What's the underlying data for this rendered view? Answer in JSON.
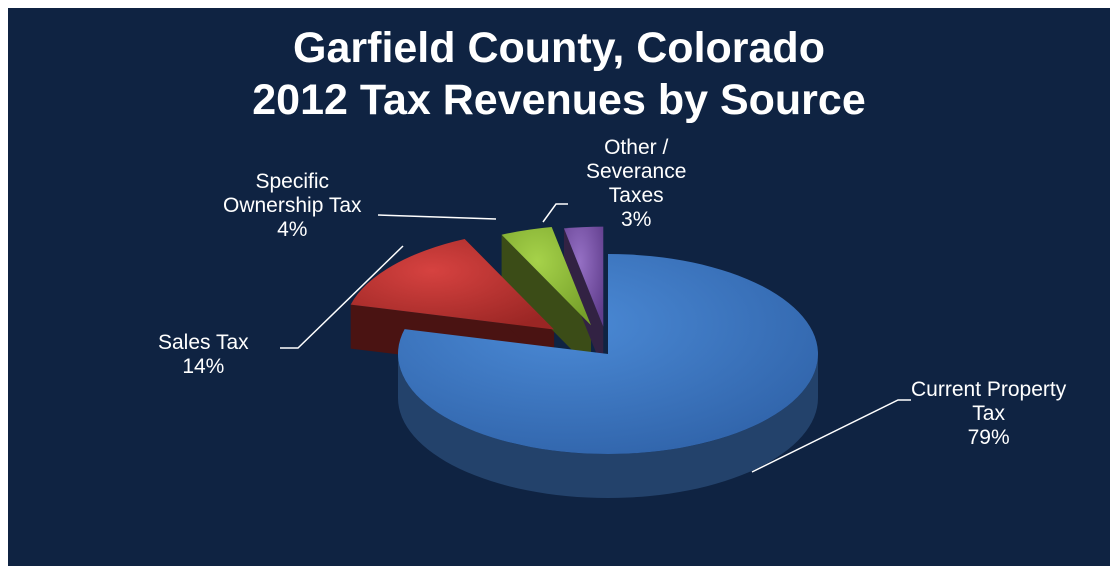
{
  "chart_data": {
    "type": "pie",
    "title": "Garfield County, Colorado",
    "subtitle": "2012 Tax Revenues by Source",
    "slices": [
      {
        "label": "Current Property Tax",
        "value": 79,
        "value_label": "79%",
        "color": "#3f78c2"
      },
      {
        "label": "Sales Tax",
        "value": 14,
        "value_label": "14%",
        "color": "#b8302e"
      },
      {
        "label": "Specific Ownership Tax",
        "value": 4,
        "value_label": "4%",
        "color": "#93bd3a"
      },
      {
        "label": "Other / Severance Taxes",
        "value": 3,
        "value_label": "3%",
        "color": "#7d55a8"
      }
    ],
    "labels": [
      {
        "lines": [
          "Current Property",
          "Tax"
        ],
        "pct": "79%"
      },
      {
        "lines": [
          "Sales Tax"
        ],
        "pct": "14%"
      },
      {
        "lines": [
          "Specific",
          "Ownership Tax"
        ],
        "pct": "4%"
      },
      {
        "lines": [
          "Other /",
          "Severance",
          "Taxes"
        ],
        "pct": "3%"
      }
    ],
    "legend": "none",
    "background": "#0f2342"
  }
}
